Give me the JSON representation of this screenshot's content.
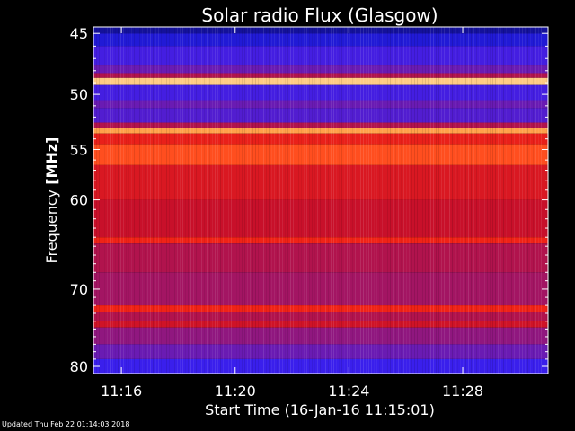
{
  "chart_data": {
    "type": "heatmap",
    "title": "Solar radio Flux (Glasgow)",
    "xlabel": "Start Time (16-Jan-16 11:15:01)",
    "ylabel_text": "Frequency ",
    "ylabel_unit": "[MHz]",
    "xlim": [
      "11:15:01",
      "11:31:00"
    ],
    "ylim": [
      81,
      44.5
    ],
    "y_scale": "log",
    "x_ticks": [
      "11:16",
      "11:20",
      "11:24",
      "11:28"
    ],
    "y_ticks": [
      45,
      50,
      55,
      60,
      70,
      80
    ],
    "colormap": [
      "#0a0a6e",
      "#2a20ff",
      "#7a1aa0",
      "#c8102a",
      "#ff2a10",
      "#ff9a40",
      "#ffe0a0"
    ],
    "bands": [
      {
        "f0": 44.5,
        "f1": 45.0,
        "level": 0.05
      },
      {
        "f0": 45.0,
        "f1": 46.0,
        "level": 0.12
      },
      {
        "f0": 46.0,
        "f1": 47.5,
        "level": 0.22
      },
      {
        "f0": 47.5,
        "f1": 48.2,
        "level": 0.3
      },
      {
        "f0": 48.2,
        "f1": 48.6,
        "level": 0.45
      },
      {
        "f0": 48.6,
        "f1": 49.2,
        "level": 0.95
      },
      {
        "f0": 49.2,
        "f1": 50.5,
        "level": 0.22
      },
      {
        "f0": 50.5,
        "f1": 51.2,
        "level": 0.3
      },
      {
        "f0": 51.2,
        "f1": 52.5,
        "level": 0.25
      },
      {
        "f0": 52.5,
        "f1": 53.0,
        "level": 0.45
      },
      {
        "f0": 53.0,
        "f1": 53.5,
        "level": 0.85
      },
      {
        "f0": 53.5,
        "f1": 54.5,
        "level": 0.6
      },
      {
        "f0": 54.5,
        "f1": 56.5,
        "level": 0.72
      },
      {
        "f0": 56.5,
        "f1": 60.0,
        "level": 0.55
      },
      {
        "f0": 60.0,
        "f1": 64.0,
        "level": 0.5
      },
      {
        "f0": 64.0,
        "f1": 64.7,
        "level": 0.62
      },
      {
        "f0": 64.7,
        "f1": 68.0,
        "level": 0.45
      },
      {
        "f0": 68.0,
        "f1": 72.0,
        "level": 0.42
      },
      {
        "f0": 72.0,
        "f1": 72.8,
        "level": 0.62
      },
      {
        "f0": 72.8,
        "f1": 74.0,
        "level": 0.45
      },
      {
        "f0": 74.0,
        "f1": 74.8,
        "level": 0.52
      },
      {
        "f0": 74.8,
        "f1": 77.0,
        "level": 0.38
      },
      {
        "f0": 77.0,
        "f1": 79.0,
        "level": 0.3
      },
      {
        "f0": 79.0,
        "f1": 81.0,
        "level": 0.2
      }
    ]
  },
  "footer": {
    "updated": "Updated Thu Feb 22 01:14:03 2018"
  }
}
